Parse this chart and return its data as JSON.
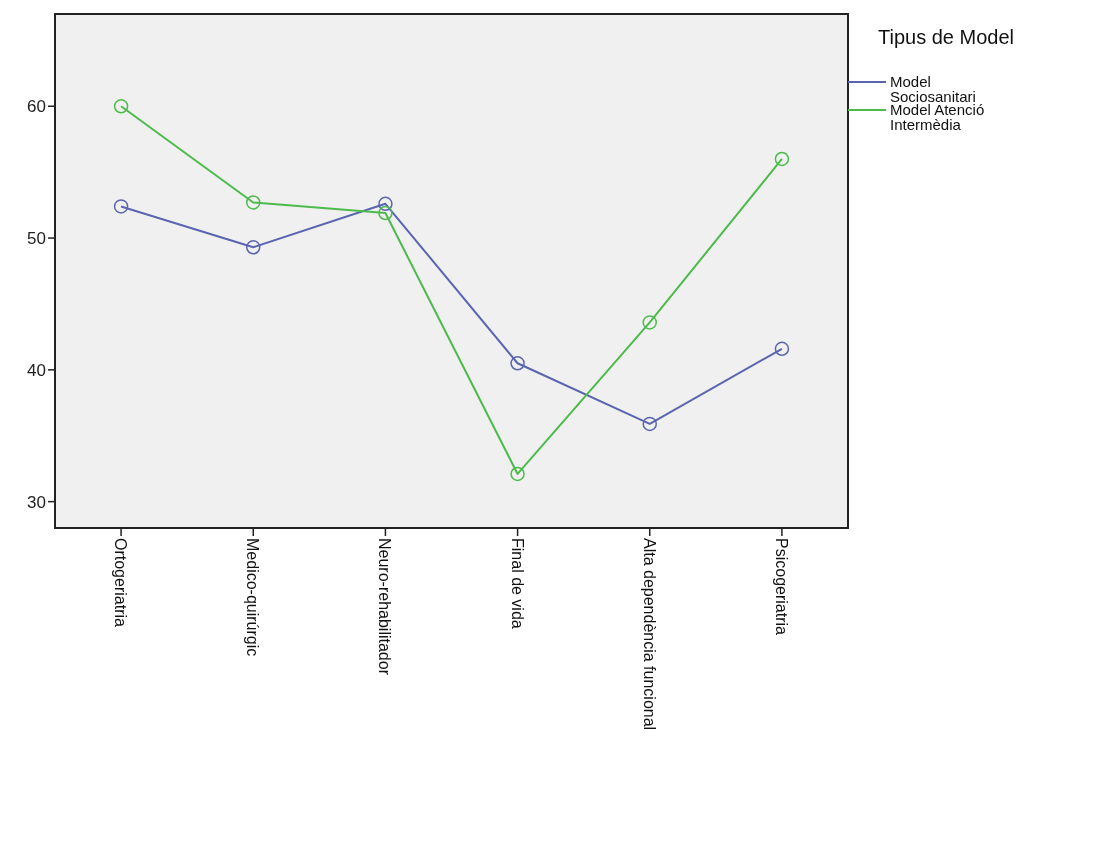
{
  "chart_data": {
    "type": "line",
    "legend_title": "Tipus de Model",
    "legend": "top right",
    "marker": "circle",
    "grid": false,
    "categories": [
      "Ortogeriatria",
      "Medico-quirúrgic",
      "Neuro-rehabilitador",
      "Final de vida",
      "Alta dependència funcional",
      "Psicogeriatria"
    ],
    "ylim": [
      28,
      67
    ],
    "yticks": [
      30,
      40,
      50,
      60
    ],
    "series": [
      {
        "name": "Model Sociosanitari",
        "color": "#5a64b0",
        "values": [
          52.4,
          49.3,
          52.6,
          40.5,
          35.9,
          41.6
        ]
      },
      {
        "name": "Model Atenció Intermèdia",
        "color": "#4cbb4c",
        "values": [
          60.0,
          52.7,
          51.9,
          32.1,
          43.6,
          56.0
        ]
      }
    ]
  }
}
